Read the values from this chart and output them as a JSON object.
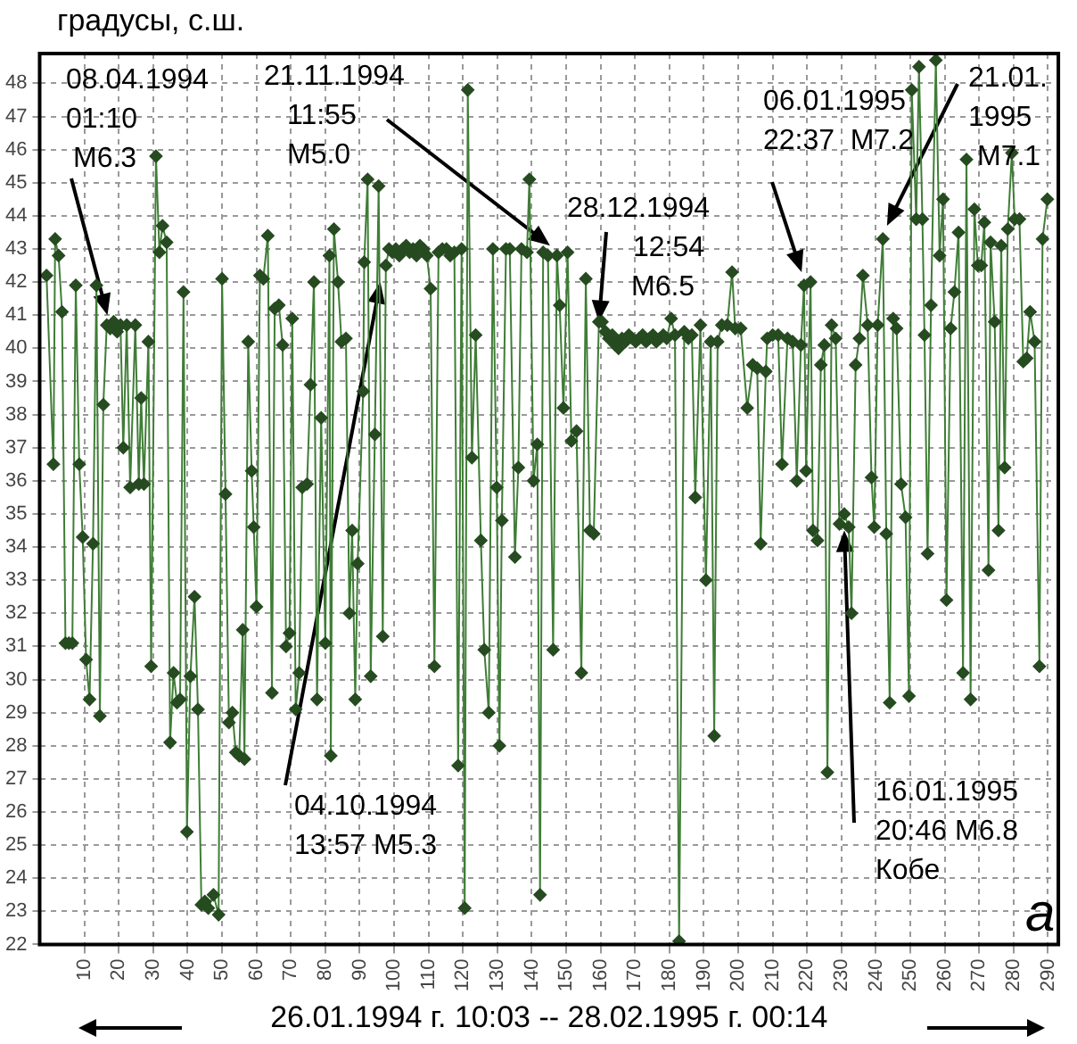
{
  "chart_data": {
    "type": "line",
    "ylabel": "градусы, с.ш.",
    "xlabel": "26.01.1994 г. 10:03 -- 28.02.1995 г. 00:14",
    "xlim": [
      -3,
      293
    ],
    "xticks": [
      10,
      20,
      30,
      40,
      50,
      60,
      70,
      80,
      90,
      100,
      110,
      120,
      130,
      140,
      150,
      160,
      170,
      180,
      190,
      200,
      210,
      220,
      230,
      240,
      250,
      260,
      270,
      280,
      290
    ],
    "ylim": [
      22,
      48.9
    ],
    "yticks": [
      22,
      23,
      24,
      25,
      26,
      27,
      28,
      29,
      30,
      31,
      32,
      33,
      34,
      35,
      36,
      37,
      38,
      39,
      40,
      41,
      42,
      43,
      44,
      45,
      46,
      47,
      48
    ],
    "grid": true,
    "legend": false,
    "marker": "diamond",
    "annotations": [
      {
        "text": "08.04.1994\n01:10\nM6.3",
        "x": 16.7,
        "y": 41.0
      },
      {
        "text": "21.11.1994\n11:55\nM5.0",
        "x": 145.3,
        "y": 43.1
      },
      {
        "text": "04.10.1994\n13:57 M5.3",
        "x": 96.0,
        "y": 42.0
      },
      {
        "text": "28.12.1994\n12:54\nM6.5",
        "x": 159.5,
        "y": 40.8
      },
      {
        "text": "06.01.1995\n22:37  M7.2",
        "x": 218.4,
        "y": 42.3
      },
      {
        "text": "21.01.\n1995\nM7.1",
        "x": 243.2,
        "y": 43.7
      },
      {
        "text": "16.01.1995\n20:46 M6.8\nКобе",
        "x": 230.8,
        "y": 34.5
      },
      "а"
    ],
    "series": [
      {
        "color": "#3f7d36",
        "x": [
          -1,
          1,
          1.5,
          2.5,
          3.5,
          4.5,
          5.5,
          6.5,
          7.5,
          8.5,
          9.5,
          10.5,
          11.5,
          12.5,
          13.5,
          14.5,
          15.5,
          16.5,
          17.5,
          18.5,
          19.5,
          20.5,
          21.3,
          22.3,
          23.3,
          24.8,
          25.8,
          26.5,
          27.3,
          28.6,
          29.4,
          30.8,
          31.8,
          32.7,
          33.9,
          34.9,
          35.9,
          36.9,
          37.8,
          38.8,
          39.8,
          40.8,
          42,
          43,
          44,
          45,
          46,
          47.5,
          49,
          50,
          51,
          52,
          53,
          54,
          55,
          56,
          56.5,
          57.6,
          58.6,
          59.2,
          60,
          61,
          62,
          63.3,
          64.5,
          65.3,
          66.5,
          67.6,
          68.6,
          69.6,
          70.4,
          71.4,
          72.4,
          73.3,
          74.7,
          75.7,
          76.7,
          77.6,
          78.8,
          80,
          81.2,
          81.6,
          82.5,
          83.7,
          84.7,
          86,
          87,
          87.8,
          88.7,
          89.4,
          91,
          91.3,
          92.3,
          93.2,
          94.4,
          95.5,
          96.7,
          97.6,
          98.5,
          99.5,
          100.5,
          101.5,
          102.5,
          103.5,
          104.5,
          105.5,
          106.5,
          107.5,
          108.5,
          109.5,
          110.6,
          111.7,
          112.9,
          114,
          115.2,
          116.3,
          117.5,
          118.6,
          119.6,
          120.5,
          121.4,
          122.6,
          123.7,
          125.2,
          126.2,
          127.5,
          128.7,
          129.8,
          130.6,
          131.3,
          132.5,
          133.6,
          135.1,
          136.1,
          137,
          138.6,
          139.3,
          140.5,
          141.6,
          142.4,
          143.3,
          144.7,
          146.2,
          147.3,
          148.1,
          149.2,
          150.4,
          151.5,
          153,
          154.4,
          155.7,
          156.9,
          158,
          159.5,
          160.4,
          161.4,
          162.4,
          163.4,
          164.3,
          165.2,
          166.2,
          167.2,
          168.2,
          169.2,
          170.2,
          171.2,
          172.2,
          173.2,
          174.2,
          175.2,
          176.2,
          177.2,
          178.2,
          179.2,
          180.5,
          181.6,
          182.8,
          184.3,
          185.5,
          186.5,
          187.5,
          189,
          190.6,
          192,
          193,
          194,
          195.2,
          196.8,
          198.2,
          199.1,
          200.7,
          202.6,
          204.2,
          205.5,
          206.5,
          208,
          208.4,
          210,
          211.6,
          212.7,
          214.3,
          215.8,
          217,
          218.2,
          219.1,
          219.7,
          221,
          221.7,
          223,
          224,
          225,
          225.9,
          227.1,
          228.3,
          229.4,
          230.8,
          232.1,
          232.9,
          234.1,
          235.2,
          236.2,
          237.6,
          238.7,
          239.5,
          240.5,
          242,
          243,
          244,
          245,
          246,
          247.3,
          248.6,
          249.6,
          250.4,
          251.7,
          252.5,
          253.5,
          254.1,
          255,
          256,
          257.4,
          258.5,
          259.5,
          260.5,
          261.7,
          262.8,
          264,
          265.3,
          266.3,
          267.5,
          268.6,
          269.6,
          270.6,
          271.5,
          272.7,
          273.3,
          274.5,
          275.6,
          276.4,
          277.4,
          278.3,
          279.5,
          280.3,
          281.7,
          282.8,
          283.8,
          284.8,
          286.1,
          287.5,
          288.4,
          289.8
        ],
        "values": [
          42.2,
          36.5,
          43.3,
          42.8,
          41.1,
          31.1,
          31.1,
          31.1,
          41.9,
          36.5,
          34.3,
          30.6,
          29.4,
          34.1,
          41.9,
          28.9,
          38.3,
          40.7,
          40.6,
          40.8,
          40.5,
          40.7,
          37.0,
          40.7,
          35.8,
          40.7,
          35.9,
          38.5,
          35.9,
          40.2,
          30.4,
          45.8,
          42.9,
          43.7,
          43.2,
          28.1,
          30.2,
          29.3,
          29.4,
          41.7,
          25.4,
          30.1,
          32.5,
          29.1,
          23.2,
          23.3,
          23.1,
          23.5,
          22.9,
          42.1,
          35.6,
          28.7,
          29.0,
          27.8,
          27.7,
          31.5,
          27.6,
          40.2,
          36.3,
          34.6,
          32.2,
          42.2,
          42.1,
          43.4,
          29.6,
          41.2,
          41.3,
          40.1,
          31.0,
          31.4,
          40.9,
          29.1,
          30.2,
          35.8,
          35.9,
          38.9,
          42.0,
          29.4,
          37.9,
          31.1,
          42.8,
          27.7,
          43.6,
          42.0,
          40.2,
          40.3,
          32.0,
          34.5,
          29.4,
          33.5,
          38.7,
          42.6,
          45.1,
          30.1,
          37.4,
          44.9,
          31.3,
          42.5,
          43.0,
          42.9,
          43.0,
          42.8,
          43.0,
          43.1,
          42.9,
          43.0,
          42.8,
          43.1,
          43.0,
          42.8,
          41.8,
          30.4,
          42.9,
          43.0,
          43.0,
          42.8,
          42.9,
          27.4,
          43.0,
          23.1,
          47.8,
          36.7,
          40.4,
          34.2,
          30.9,
          29.0,
          43.0,
          35.8,
          28.0,
          34.8,
          43.0,
          43.0,
          33.7,
          36.4,
          43.0,
          42.9,
          45.1,
          36.0,
          37.1,
          23.5,
          42.9,
          42.8,
          30.9,
          42.8,
          41.3,
          38.2,
          42.9,
          37.2,
          37.5,
          30.2,
          42.1,
          34.5,
          34.4,
          40.8,
          40.8,
          40.5,
          40.3,
          40.4,
          40.1,
          40.0,
          40.3,
          40.2,
          40.4,
          40.3,
          40.2,
          40.3,
          40.4,
          40.2,
          40.3,
          40.4,
          40.2,
          40.3,
          40.4,
          40.3,
          40.9,
          40.4,
          22.1,
          40.5,
          40.3,
          40.4,
          35.5,
          40.7,
          33.0,
          40.2,
          28.3,
          40.2,
          40.7,
          40.7,
          42.3,
          40.6,
          40.6,
          38.2,
          39.5,
          39.4,
          34.1,
          39.3,
          40.3,
          40.4,
          40.4,
          36.5,
          40.3,
          40.2,
          36.0,
          40.1,
          41.9,
          36.3,
          42.0,
          34.5,
          34.2,
          39.5,
          40.1,
          27.2,
          40.7,
          40.3,
          34.7,
          35.0,
          34.6,
          32.0,
          39.5,
          40.3,
          42.2,
          40.7,
          36.1,
          34.6,
          40.7,
          43.3,
          34.4,
          29.3,
          40.9,
          40.6,
          35.9,
          34.9,
          29.5,
          47.8,
          43.9,
          48.5,
          43.9,
          40.4,
          33.8,
          41.3,
          48.7,
          42.8,
          44.5,
          32.4,
          40.6,
          41.7,
          43.5,
          30.2,
          45.7,
          29.4,
          44.2,
          42.5,
          42.5,
          43.8,
          33.3,
          43.2,
          40.8,
          34.5,
          43.1,
          36.4,
          43.6,
          45.9,
          43.9,
          43.9,
          39.6,
          39.7,
          41.1,
          40.2,
          30.4,
          43.3,
          44.5
        ]
      }
    ]
  }
}
